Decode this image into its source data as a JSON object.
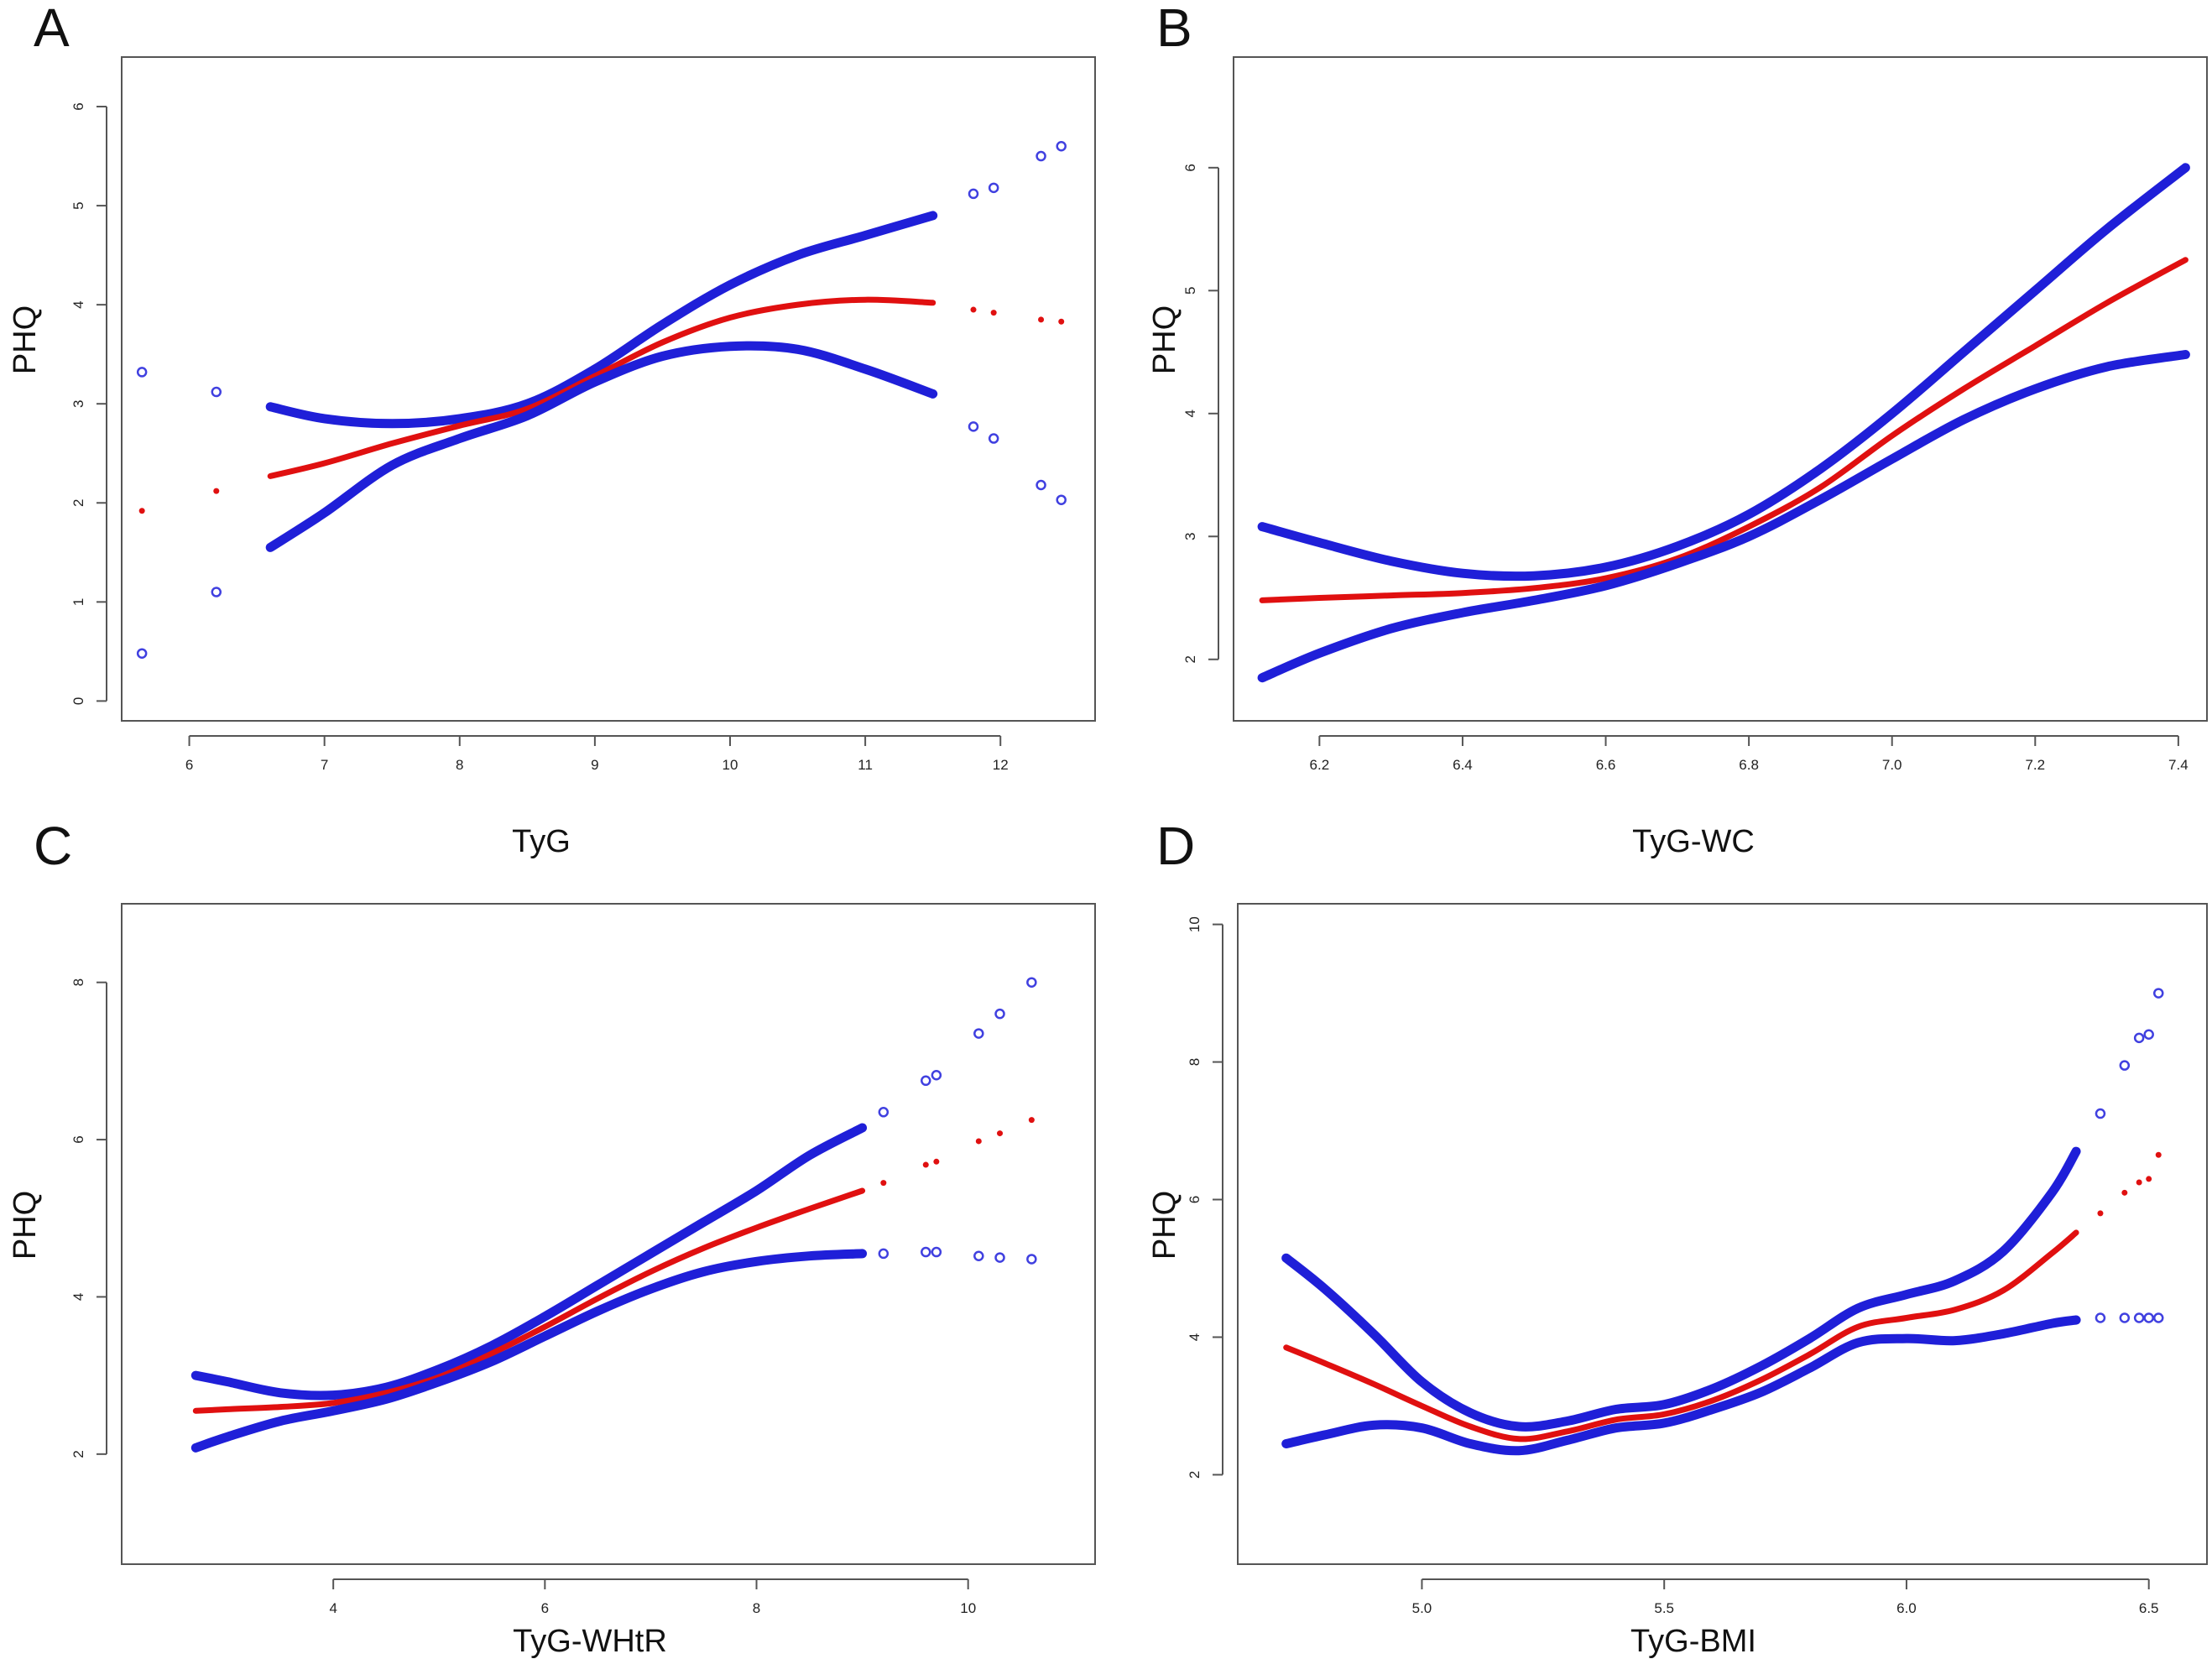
{
  "chart_data": [
    {
      "type": "line",
      "panel": "A",
      "xlabel": "TyG",
      "ylabel": "PHQ",
      "xlim": [
        5.5,
        12.7
      ],
      "ylim": [
        -0.2,
        6.5
      ],
      "xticks": [
        6,
        7,
        8,
        9,
        10,
        11,
        12
      ],
      "yticks": [
        0,
        1,
        2,
        3,
        4,
        5,
        6
      ],
      "xtick_labels": [
        "6",
        "7",
        "8",
        "9",
        "10",
        "11",
        "12"
      ],
      "ytick_labels": [
        "0",
        "1",
        "2",
        "3",
        "4",
        "5",
        "6"
      ],
      "series": [
        {
          "name": "upper",
          "role": "band",
          "x": [
            6.6,
            7.0,
            7.5,
            8.0,
            8.5,
            9.0,
            9.5,
            10.0,
            10.5,
            11.0,
            11.5
          ],
          "y": [
            2.97,
            2.85,
            2.8,
            2.85,
            3.0,
            3.35,
            3.8,
            4.2,
            4.5,
            4.7,
            4.9
          ]
        },
        {
          "name": "fit",
          "role": "fit",
          "x": [
            6.6,
            7.0,
            7.5,
            8.0,
            8.5,
            9.0,
            9.5,
            10.0,
            10.5,
            11.0,
            11.5
          ],
          "y": [
            2.27,
            2.4,
            2.6,
            2.78,
            2.95,
            3.28,
            3.62,
            3.87,
            4.0,
            4.05,
            4.02
          ]
        },
        {
          "name": "lower",
          "role": "band",
          "x": [
            6.6,
            7.0,
            7.5,
            8.0,
            8.5,
            9.0,
            9.5,
            10.0,
            10.5,
            11.0,
            11.5
          ],
          "y": [
            1.55,
            1.9,
            2.38,
            2.65,
            2.88,
            3.22,
            3.48,
            3.58,
            3.55,
            3.35,
            3.1
          ]
        },
        {
          "name": "upper-sparse",
          "role": "sparse-band",
          "x": [
            5.65,
            6.2,
            11.8,
            11.95,
            12.3,
            12.45
          ],
          "y": [
            3.32,
            3.12,
            5.12,
            5.18,
            5.5,
            5.6
          ]
        },
        {
          "name": "fit-sparse",
          "role": "sparse-fit",
          "x": [
            5.65,
            6.2,
            11.8,
            11.95,
            12.3,
            12.45
          ],
          "y": [
            1.92,
            2.12,
            3.95,
            3.92,
            3.85,
            3.83
          ]
        },
        {
          "name": "lower-sparse",
          "role": "sparse-band",
          "x": [
            5.65,
            6.2,
            11.8,
            11.95,
            12.3,
            12.45
          ],
          "y": [
            0.48,
            1.1,
            2.77,
            2.65,
            2.18,
            2.03
          ]
        }
      ]
    },
    {
      "type": "line",
      "panel": "B",
      "xlabel": "TyG-WC",
      "ylabel": "PHQ",
      "xlim": [
        6.08,
        7.44
      ],
      "ylim": [
        1.5,
        6.9
      ],
      "xticks": [
        6.2,
        6.4,
        6.6,
        6.8,
        7.0,
        7.2,
        7.4
      ],
      "yticks": [
        2,
        3,
        4,
        5,
        6
      ],
      "xtick_labels": [
        "6.2",
        "6.4",
        "6.6",
        "6.8",
        "7.0",
        "7.2",
        "7.4"
      ],
      "ytick_labels": [
        "2",
        "3",
        "4",
        "5",
        "6"
      ],
      "series": [
        {
          "name": "upper",
          "role": "band",
          "x": [
            6.12,
            6.2,
            6.3,
            6.4,
            6.5,
            6.6,
            6.7,
            6.8,
            6.9,
            7.0,
            7.1,
            7.2,
            7.3,
            7.41
          ],
          "y": [
            3.08,
            2.95,
            2.8,
            2.7,
            2.68,
            2.75,
            2.92,
            3.18,
            3.55,
            4.0,
            4.5,
            5.0,
            5.5,
            6.0
          ]
        },
        {
          "name": "fit",
          "role": "fit",
          "x": [
            6.12,
            6.2,
            6.3,
            6.4,
            6.5,
            6.6,
            6.7,
            6.8,
            6.9,
            7.0,
            7.1,
            7.2,
            7.3,
            7.41
          ],
          "y": [
            2.48,
            2.5,
            2.52,
            2.54,
            2.58,
            2.66,
            2.82,
            3.08,
            3.4,
            3.82,
            4.2,
            4.55,
            4.9,
            5.25
          ]
        },
        {
          "name": "lower",
          "role": "band",
          "x": [
            6.12,
            6.2,
            6.3,
            6.4,
            6.5,
            6.6,
            6.7,
            6.8,
            6.9,
            7.0,
            7.1,
            7.2,
            7.3,
            7.41
          ],
          "y": [
            1.85,
            2.05,
            2.25,
            2.38,
            2.48,
            2.6,
            2.78,
            3.0,
            3.3,
            3.63,
            3.95,
            4.2,
            4.38,
            4.48
          ]
        }
      ]
    },
    {
      "type": "line",
      "panel": "C",
      "xlabel": "TyG-WHtR",
      "ylabel": "PHQ",
      "xlim": [
        2.0,
        11.2
      ],
      "ylim": [
        0.6,
        9.0
      ],
      "xticks": [
        4,
        6,
        8,
        10
      ],
      "yticks": [
        2,
        4,
        6,
        8
      ],
      "xtick_labels": [
        "4",
        "6",
        "8",
        "10"
      ],
      "ytick_labels": [
        "2",
        "4",
        "6",
        "8"
      ],
      "series": [
        {
          "name": "upper",
          "role": "band",
          "x": [
            2.7,
            3.0,
            3.5,
            4.0,
            4.5,
            5.0,
            5.5,
            6.0,
            6.5,
            7.0,
            7.5,
            8.0,
            8.5,
            9.0
          ],
          "y": [
            3.0,
            2.92,
            2.78,
            2.75,
            2.85,
            3.08,
            3.38,
            3.75,
            4.15,
            4.55,
            4.95,
            5.35,
            5.8,
            6.15
          ]
        },
        {
          "name": "fit",
          "role": "fit",
          "x": [
            2.7,
            3.0,
            3.5,
            4.0,
            4.5,
            5.0,
            5.5,
            6.0,
            6.5,
            7.0,
            7.5,
            8.0,
            8.5,
            9.0
          ],
          "y": [
            2.55,
            2.57,
            2.6,
            2.65,
            2.78,
            2.98,
            3.28,
            3.62,
            3.98,
            4.32,
            4.62,
            4.88,
            5.12,
            5.35
          ]
        },
        {
          "name": "lower",
          "role": "band",
          "x": [
            2.7,
            3.0,
            3.5,
            4.0,
            4.5,
            5.0,
            5.5,
            6.0,
            6.5,
            7.0,
            7.5,
            8.0,
            8.5,
            9.0
          ],
          "y": [
            2.08,
            2.22,
            2.42,
            2.55,
            2.7,
            2.92,
            3.18,
            3.5,
            3.82,
            4.1,
            4.32,
            4.45,
            4.52,
            4.55
          ]
        },
        {
          "name": "upper-sparse",
          "role": "sparse-band",
          "x": [
            9.2,
            9.6,
            9.7,
            10.1,
            10.3,
            10.6
          ],
          "y": [
            6.35,
            6.75,
            6.82,
            7.35,
            7.6,
            8.0
          ]
        },
        {
          "name": "fit-sparse",
          "role": "sparse-fit",
          "x": [
            9.2,
            9.6,
            9.7,
            10.1,
            10.3,
            10.6
          ],
          "y": [
            5.45,
            5.68,
            5.72,
            5.98,
            6.08,
            6.25
          ]
        },
        {
          "name": "lower-sparse",
          "role": "sparse-band",
          "x": [
            9.2,
            9.6,
            9.7,
            10.1,
            10.3,
            10.6
          ],
          "y": [
            4.55,
            4.57,
            4.57,
            4.52,
            4.5,
            4.48
          ]
        }
      ]
    },
    {
      "type": "line",
      "panel": "D",
      "xlabel": "TyG-BMI",
      "ylabel": "PHQ",
      "xlim": [
        4.62,
        6.62
      ],
      "ylim": [
        0.7,
        10.3
      ],
      "xticks": [
        5.0,
        5.5,
        6.0,
        6.5
      ],
      "yticks": [
        2,
        4,
        6,
        8,
        10
      ],
      "xtick_labels": [
        "5.0",
        "5.5",
        "6.0",
        "6.5"
      ],
      "ytick_labels": [
        "2",
        "4",
        "6",
        "8",
        "10"
      ],
      "series": [
        {
          "name": "upper",
          "role": "band",
          "x": [
            4.72,
            4.8,
            4.9,
            5.0,
            5.1,
            5.2,
            5.3,
            5.4,
            5.5,
            5.6,
            5.7,
            5.8,
            5.9,
            6.0,
            6.1,
            6.2,
            6.3,
            6.35
          ],
          "y": [
            5.15,
            4.7,
            4.05,
            3.35,
            2.9,
            2.7,
            2.78,
            2.95,
            3.02,
            3.25,
            3.58,
            3.98,
            4.42,
            4.62,
            4.82,
            5.25,
            6.1,
            6.7
          ]
        },
        {
          "name": "fit",
          "role": "fit",
          "x": [
            4.72,
            4.8,
            4.9,
            5.0,
            5.1,
            5.2,
            5.3,
            5.4,
            5.5,
            5.6,
            5.7,
            5.8,
            5.9,
            6.0,
            6.1,
            6.2,
            6.3,
            6.35
          ],
          "y": [
            3.85,
            3.62,
            3.32,
            3.0,
            2.7,
            2.52,
            2.63,
            2.8,
            2.88,
            3.08,
            3.38,
            3.75,
            4.15,
            4.28,
            4.4,
            4.68,
            5.22,
            5.52
          ]
        },
        {
          "name": "lower",
          "role": "band",
          "x": [
            4.72,
            4.8,
            4.9,
            5.0,
            5.1,
            5.2,
            5.3,
            5.4,
            5.5,
            5.6,
            5.7,
            5.8,
            5.9,
            6.0,
            6.1,
            6.2,
            6.3,
            6.35
          ],
          "y": [
            2.45,
            2.58,
            2.72,
            2.68,
            2.45,
            2.35,
            2.5,
            2.68,
            2.75,
            2.95,
            3.2,
            3.55,
            3.92,
            3.98,
            3.95,
            4.05,
            4.2,
            4.25
          ]
        },
        {
          "name": "upper-sparse",
          "role": "sparse-band",
          "x": [
            6.4,
            6.45,
            6.48,
            6.5,
            6.52
          ],
          "y": [
            7.25,
            7.95,
            8.35,
            8.4,
            9.0
          ]
        },
        {
          "name": "fit-sparse",
          "role": "sparse-fit",
          "x": [
            6.4,
            6.45,
            6.48,
            6.5,
            6.52
          ],
          "y": [
            5.8,
            6.1,
            6.25,
            6.3,
            6.65
          ]
        },
        {
          "name": "lower-sparse",
          "role": "sparse-band",
          "x": [
            6.4,
            6.45,
            6.48,
            6.5,
            6.52
          ],
          "y": [
            4.28,
            4.28,
            4.28,
            4.28,
            4.28
          ]
        }
      ]
    }
  ]
}
